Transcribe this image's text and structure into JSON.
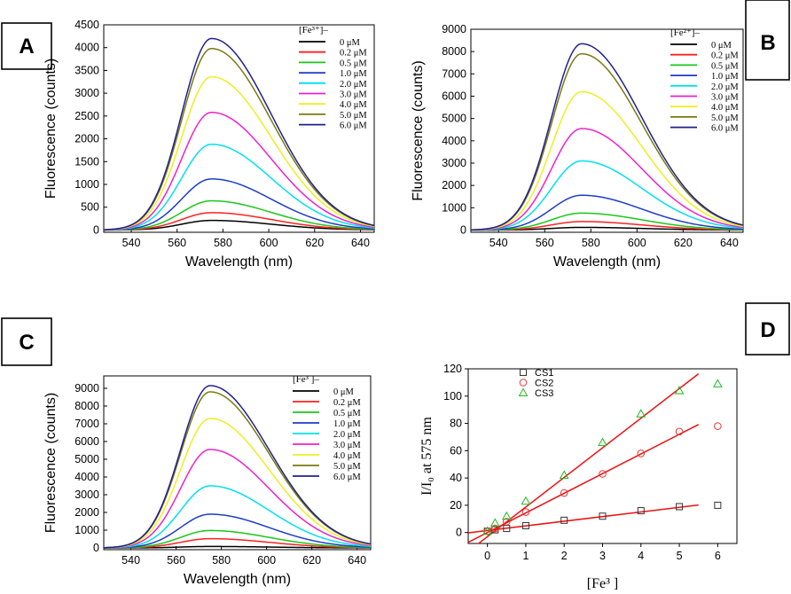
{
  "chart_data": [
    {
      "panel": "A",
      "type": "line",
      "xlabel": "Wavelength (nm)",
      "ylabel": "Fluorescence (counts)",
      "xlim": [
        528,
        646
      ],
      "ylim": [
        -50,
        4500
      ],
      "xticks": [
        540,
        560,
        580,
        600,
        620,
        640
      ],
      "yticks": [
        0,
        500,
        1000,
        1500,
        2000,
        2500,
        3000,
        3500,
        4000,
        4500
      ],
      "peak_wavelength": 575,
      "legend_title": "[Fe³⁺]–",
      "series": [
        {
          "name": "0 μM",
          "color": "#000000",
          "peak": 210
        },
        {
          "name": "0.2 μM",
          "color": "#ff2020",
          "peak": 380
        },
        {
          "name": "0.5 μM",
          "color": "#19c819",
          "peak": 640
        },
        {
          "name": "1.0 μM",
          "color": "#1e3cc8",
          "peak": 1120
        },
        {
          "name": "2.0 μM",
          "color": "#00e0f0",
          "peak": 1880
        },
        {
          "name": "3.0 μM",
          "color": "#ee22cc",
          "peak": 2580
        },
        {
          "name": "4.0 μM",
          "color": "#eeee22",
          "peak": 3360
        },
        {
          "name": "5.0 μM",
          "color": "#7a7a10",
          "peak": 3980
        },
        {
          "name": "6.0 μM",
          "color": "#202090",
          "peak": 4200
        }
      ]
    },
    {
      "panel": "B",
      "type": "line",
      "xlabel": "Wavelength (nm)",
      "ylabel": "Fluorescence (counts)",
      "xlim": [
        528,
        646
      ],
      "ylim": [
        -100,
        9000
      ],
      "xticks": [
        540,
        560,
        580,
        600,
        620,
        640
      ],
      "yticks": [
        0,
        1000,
        2000,
        3000,
        4000,
        5000,
        6000,
        7000,
        8000,
        9000
      ],
      "peak_wavelength": 576,
      "legend_title": "[Fe²⁺]–",
      "series": [
        {
          "name": "0 μM",
          "color": "#000000",
          "peak": 120
        },
        {
          "name": "0.2 μM",
          "color": "#ff2020",
          "peak": 380
        },
        {
          "name": "0.5 μM",
          "color": "#19c819",
          "peak": 760
        },
        {
          "name": "1.0 μM",
          "color": "#1e3cc8",
          "peak": 1560
        },
        {
          "name": "2.0 μM",
          "color": "#00e0f0",
          "peak": 3100
        },
        {
          "name": "3.0 μM",
          "color": "#ee22cc",
          "peak": 4550
        },
        {
          "name": "4.0 μM",
          "color": "#eeee22",
          "peak": 6200
        },
        {
          "name": "5.0 μM",
          "color": "#7a7a10",
          "peak": 7900
        },
        {
          "name": "6.0 μM",
          "color": "#202090",
          "peak": 8350
        }
      ]
    },
    {
      "panel": "C",
      "type": "line",
      "xlabel": "Wavelength (nm)",
      "ylabel": "Fluorescence (counts)",
      "xlim": [
        528,
        646
      ],
      "ylim": [
        -100,
        9700
      ],
      "xticks": [
        540,
        560,
        580,
        600,
        620,
        640
      ],
      "yticks": [
        0,
        1000,
        2000,
        3000,
        4000,
        5000,
        6000,
        7000,
        8000,
        9000
      ],
      "peak_wavelength": 575,
      "legend_title": "[Fe³ ]–",
      "series": [
        {
          "name": "0 μM",
          "color": "#000000",
          "peak": 80
        },
        {
          "name": "0.2 μM",
          "color": "#ff2020",
          "peak": 520
        },
        {
          "name": "0.5 μM",
          "color": "#19c819",
          "peak": 980
        },
        {
          "name": "1.0 μM",
          "color": "#1e3cc8",
          "peak": 1900
        },
        {
          "name": "2.0 μM",
          "color": "#00e0f0",
          "peak": 3500
        },
        {
          "name": "3.0 μM",
          "color": "#ee22cc",
          "peak": 5550
        },
        {
          "name": "4.0 μM",
          "color": "#eeee22",
          "peak": 7300
        },
        {
          "name": "5.0 μM",
          "color": "#7a7a10",
          "peak": 8800
        },
        {
          "name": "6.0 μM",
          "color": "#202090",
          "peak": 9150
        }
      ]
    },
    {
      "panel": "D",
      "type": "scatter",
      "xlabel": "[Fe³ ]",
      "ylabel": "I/I₀ at 575 nm",
      "xlim": [
        -0.5,
        6.5
      ],
      "ylim": [
        -8,
        120
      ],
      "xticks": [
        0,
        1,
        2,
        3,
        4,
        5,
        6
      ],
      "yticks": [
        0,
        20,
        40,
        60,
        80,
        100,
        120
      ],
      "fit_color": "#ee1111",
      "series": [
        {
          "name": "CS1",
          "marker": "square",
          "color": "#333333",
          "x": [
            0,
            0.2,
            0.5,
            1,
            2,
            3,
            4,
            5,
            6
          ],
          "y": [
            1,
            2,
            3,
            5,
            9,
            12,
            16,
            19,
            20
          ],
          "fit": {
            "slope": 3.4,
            "intercept": 1.5,
            "x_range": [
              -0.5,
              5.5
            ]
          }
        },
        {
          "name": "CS2",
          "marker": "circle",
          "color": "#ee3333",
          "x": [
            0,
            0.2,
            0.5,
            1,
            2,
            3,
            4,
            5,
            6
          ],
          "y": [
            1,
            3,
            8,
            15,
            29,
            43,
            58,
            74,
            78
          ],
          "fit": {
            "slope": 14.4,
            "intercept": 0,
            "x_range": [
              -0.5,
              5.5
            ]
          }
        },
        {
          "name": "CS3",
          "marker": "triangle",
          "color": "#22bb22",
          "x": [
            0,
            0.2,
            0.5,
            1,
            2,
            3,
            4,
            5,
            6
          ],
          "y": [
            1,
            7,
            12,
            23,
            42,
            66,
            87,
            104,
            109
          ],
          "fit": {
            "slope": 21.7,
            "intercept": -3,
            "x_range": [
              -0.5,
              5.5
            ]
          }
        }
      ]
    }
  ],
  "panels": {
    "a": {
      "badge": "A"
    },
    "b": {
      "badge": "B"
    },
    "c": {
      "badge": "C"
    },
    "d": {
      "badge": "D"
    }
  }
}
